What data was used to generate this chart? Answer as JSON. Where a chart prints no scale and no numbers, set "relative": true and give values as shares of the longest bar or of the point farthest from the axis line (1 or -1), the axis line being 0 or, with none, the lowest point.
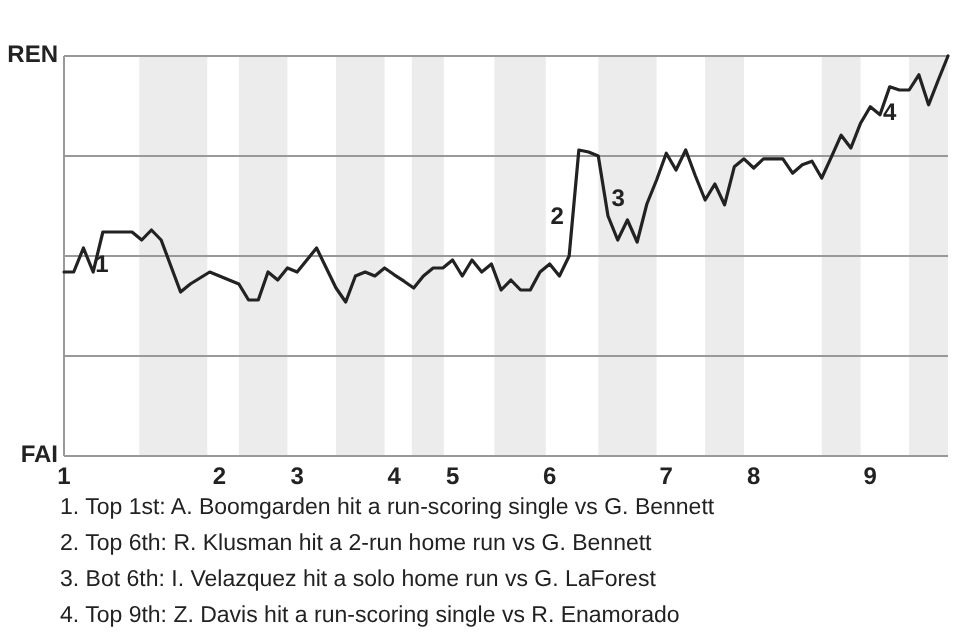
{
  "chart_data": {
    "type": "line",
    "relative": true,
    "categories": [
      "1",
      null,
      null,
      null,
      null,
      null,
      null,
      null,
      null,
      null,
      null,
      null,
      null,
      null,
      null,
      null,
      "2",
      null,
      null,
      null,
      null,
      null,
      null,
      null,
      "3",
      null,
      null,
      null,
      null,
      null,
      null,
      null,
      null,
      null,
      "4",
      null,
      null,
      null,
      null,
      null,
      "5",
      null,
      null,
      null,
      null,
      null,
      null,
      null,
      null,
      null,
      "6",
      null,
      null,
      null,
      null,
      null,
      null,
      null,
      null,
      null,
      null,
      null,
      "7",
      null,
      null,
      null,
      null,
      null,
      null,
      null,
      null,
      "8",
      null,
      null,
      null,
      null,
      null,
      null,
      null,
      null,
      null,
      null,
      null,
      "9",
      null,
      null,
      null,
      null,
      null,
      null,
      null,
      null
    ],
    "grid": "y",
    "marker": "none",
    "line_style": "solid",
    "series": [
      {
        "color": "#222222",
        "values": [
          0.46,
          0.46,
          0.52,
          0.46,
          0.56,
          0.56,
          0.56,
          0.56,
          0.54,
          0.565,
          0.54,
          0.475,
          0.41,
          0.43,
          0.445,
          0.46,
          0.45,
          0.44,
          0.43,
          0.39,
          0.39,
          0.46,
          0.44,
          0.47,
          0.46,
          0.49,
          0.52,
          0.47,
          0.42,
          0.385,
          0.45,
          0.46,
          0.45,
          0.47,
          0.453,
          0.437,
          0.42,
          0.45,
          0.47,
          0.47,
          0.49,
          0.45,
          0.49,
          0.46,
          0.48,
          0.415,
          0.44,
          0.415,
          0.415,
          0.46,
          0.48,
          0.45,
          0.5,
          0.765,
          0.76,
          0.75,
          0.6,
          0.54,
          0.59,
          0.535,
          0.63,
          0.69,
          0.757,
          0.715,
          0.765,
          0.7,
          0.64,
          0.68,
          0.628,
          0.723,
          0.743,
          0.72,
          0.743,
          0.743,
          0.743,
          0.707,
          0.728,
          0.737,
          0.695,
          0.748,
          0.802,
          0.77,
          0.832,
          0.873,
          0.853,
          0.923,
          0.915,
          0.915,
          0.953,
          0.878,
          0.94,
          1.0
        ]
      }
    ],
    "annotations": [
      "REN",
      "FAI",
      "1",
      "2",
      "3",
      "4",
      "1. Top 1st: A. Boomgarden hit a run-scoring single vs G. Bennett",
      "2. Top 6th: R. Klusman hit a 2-run home run vs G. Bennett",
      "3. Bot 6th: I. Velazquez hit a solo home run vs G. LaForest",
      "4. Top 9th: Z. Davis hit a run-scoring single vs R. Enamorado"
    ]
  }
}
